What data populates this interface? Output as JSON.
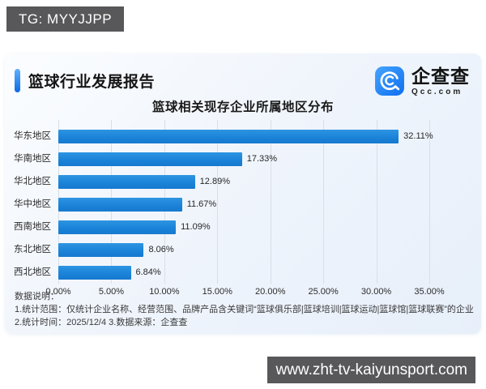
{
  "badge": {
    "text": "TG: MYYJJPP"
  },
  "report": {
    "title": "篮球行业发展报告",
    "logo": {
      "name": "企查查",
      "domain": "Qcc.com"
    }
  },
  "chart_data": {
    "type": "bar",
    "orientation": "horizontal",
    "title": "篮球相关现存企业所属地区分布",
    "categories": [
      "华东地区",
      "华南地区",
      "华北地区",
      "华中地区",
      "西南地区",
      "东北地区",
      "西北地区"
    ],
    "values": [
      32.11,
      17.33,
      12.89,
      11.67,
      11.09,
      8.06,
      6.84
    ],
    "value_labels": [
      "32.11%",
      "17.33%",
      "12.89%",
      "11.67%",
      "11.09%",
      "8.06%",
      "6.84%"
    ],
    "x_ticks": [
      "0.00%",
      "5.00%",
      "10.00%",
      "15.00%",
      "20.00%",
      "25.00%",
      "30.00%",
      "35.00%"
    ],
    "xlim": [
      0,
      35
    ],
    "grid": true,
    "legend": "none",
    "bar_color": "#1a82d8",
    "grid_color": "#d9dfe8"
  },
  "notes": {
    "heading": "数据说明：",
    "line1": "1.统计范围：仅统计企业名称、经营范围、品牌产品含关键词“篮球俱乐部|篮球培训|篮球运动|篮球馆|篮球联赛”的企业",
    "line2": "2.统计时间：2025/12/4  3.数据来源：企查查"
  },
  "watermark": {
    "url_text": "www.zht-tv-kaiyunsport.com"
  }
}
